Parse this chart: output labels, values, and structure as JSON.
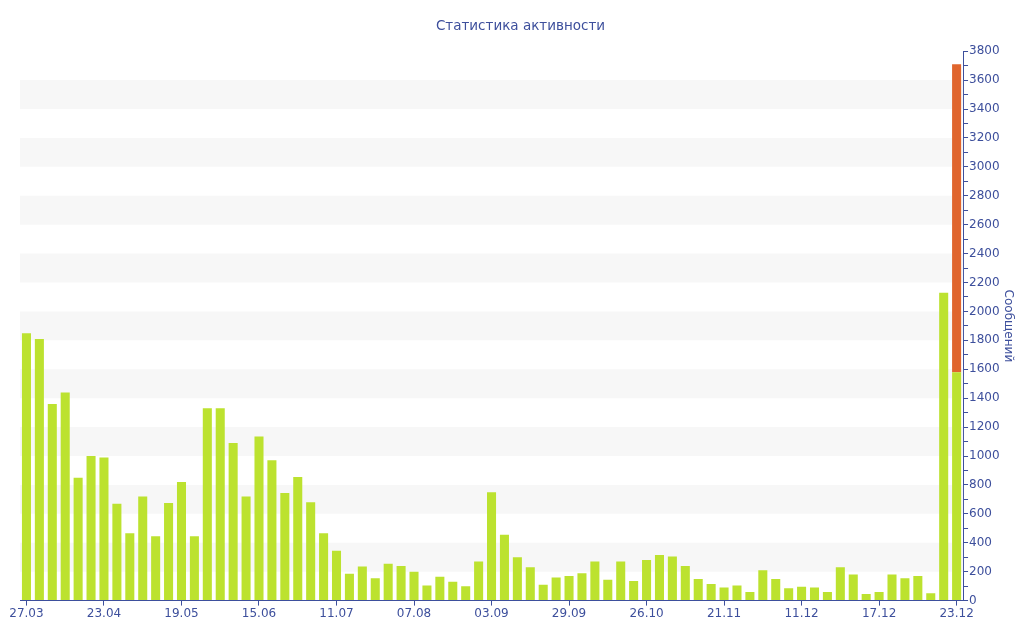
{
  "chart_data": {
    "type": "bar",
    "title": "Статистика активности",
    "ylabel": "Сообщений",
    "categories": [
      "27.03",
      null,
      null,
      null,
      null,
      null,
      "23.04",
      null,
      null,
      null,
      null,
      null,
      "19.05",
      null,
      null,
      null,
      null,
      null,
      "15.06",
      null,
      null,
      null,
      null,
      null,
      "11.07",
      null,
      null,
      null,
      null,
      null,
      "07.08",
      null,
      null,
      null,
      null,
      null,
      "03.09",
      null,
      null,
      null,
      null,
      null,
      "29.09",
      null,
      null,
      null,
      null,
      null,
      "26.10",
      null,
      null,
      null,
      null,
      null,
      "21.11",
      null,
      null,
      null,
      null,
      null,
      "11.12",
      null,
      null,
      null,
      null,
      null,
      "17.12",
      null,
      null,
      null,
      null,
      null,
      "23.12"
    ],
    "series": [
      {
        "color": "#bce22f",
        "values": [
          1850,
          1810,
          1360,
          1440,
          850,
          1000,
          990,
          670,
          465,
          720,
          445,
          675,
          820,
          445,
          1330,
          1330,
          1090,
          720,
          1135,
          970,
          745,
          855,
          680,
          465,
          345,
          185,
          235,
          155,
          255,
          240,
          200,
          105,
          165,
          130,
          100,
          270,
          750,
          455,
          300,
          230,
          110,
          160,
          170,
          190,
          270,
          145,
          270,
          135,
          280,
          315,
          305,
          240,
          150,
          115,
          90,
          105,
          60,
          210,
          150,
          85,
          95,
          90,
          60,
          230,
          180,
          45,
          60,
          180,
          155,
          170,
          50,
          2130,
          1580
        ]
      },
      {
        "color": "#e0652d",
        "values": [
          null,
          null,
          null,
          null,
          null,
          null,
          null,
          null,
          null,
          null,
          null,
          null,
          null,
          null,
          null,
          null,
          null,
          null,
          null,
          null,
          null,
          null,
          null,
          null,
          null,
          null,
          null,
          null,
          null,
          null,
          null,
          null,
          null,
          null,
          null,
          null,
          null,
          null,
          null,
          null,
          null,
          null,
          null,
          null,
          null,
          null,
          null,
          null,
          null,
          null,
          null,
          null,
          null,
          null,
          null,
          null,
          null,
          null,
          null,
          null,
          null,
          null,
          null,
          null,
          null,
          null,
          null,
          null,
          null,
          null,
          null,
          null,
          2130
        ]
      }
    ],
    "stacked": true,
    "ylim": [
      0,
      3800
    ],
    "yticks": [
      0,
      {
        "value": 100,
        "label": null
      },
      200,
      {
        "value": 300,
        "label": null
      },
      400,
      {
        "value": 500,
        "label": null
      },
      600,
      {
        "value": 700,
        "label": null
      },
      800,
      {
        "value": 900,
        "label": null
      },
      1000,
      {
        "value": 1100,
        "label": null
      },
      1200,
      {
        "value": 1300,
        "label": null
      },
      1400,
      {
        "value": 1500,
        "label": null
      },
      1600,
      {
        "value": 1700,
        "label": null
      },
      1800,
      {
        "value": 1900,
        "label": null
      },
      2000,
      {
        "value": 2100,
        "label": null
      },
      2200,
      {
        "value": 2300,
        "label": null
      },
      2400,
      {
        "value": 2500,
        "label": null
      },
      2600,
      {
        "value": 2700,
        "label": null
      },
      2800,
      {
        "value": 2900,
        "label": null
      },
      3000,
      {
        "value": 3100,
        "label": null
      },
      3200,
      {
        "value": 3300,
        "label": null
      },
      3400,
      {
        "value": 3500,
        "label": null
      },
      3600,
      {
        "value": 3700,
        "label": null
      },
      3800
    ],
    "bands": [
      {
        "axis": "y",
        "from": 200,
        "to": 400,
        "color": "#f7f7f7"
      },
      {
        "axis": "y",
        "from": 600,
        "to": 800,
        "color": "#f7f7f7"
      },
      {
        "axis": "y",
        "from": 1000,
        "to": 1200,
        "color": "#f7f7f7"
      },
      {
        "axis": "y",
        "from": 1400,
        "to": 1600,
        "color": "#f7f7f7"
      },
      {
        "axis": "y",
        "from": 1800,
        "to": 2000,
        "color": "#f7f7f7"
      },
      {
        "axis": "y",
        "from": 2200,
        "to": 2400,
        "color": "#f7f7f7"
      },
      {
        "axis": "y",
        "from": 2600,
        "to": 2800,
        "color": "#f7f7f7"
      },
      {
        "axis": "y",
        "from": 3000,
        "to": 3200,
        "color": "#f7f7f7"
      },
      {
        "axis": "y",
        "from": 3400,
        "to": 3600,
        "color": "#f7f7f7"
      }
    ],
    "legend": false
  }
}
